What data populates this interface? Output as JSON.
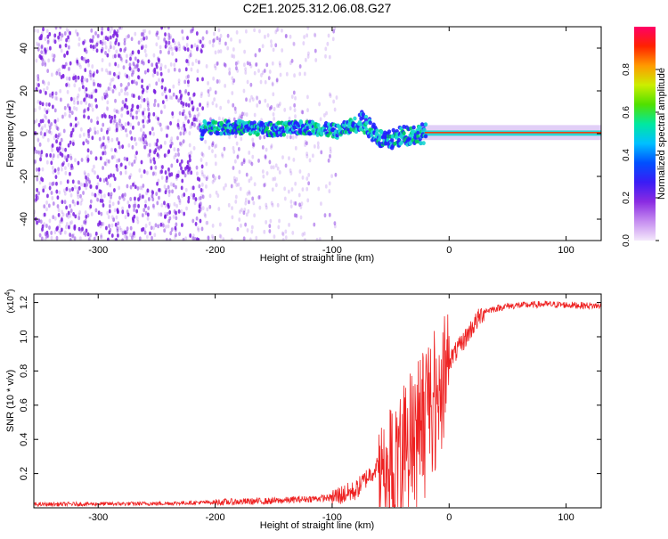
{
  "title": "C2E1.2025.312.06.08.G27",
  "colors": {
    "series": "#ee2222",
    "spec_dot": "#7a1fe0",
    "spec_ridge_low": "#2020ff",
    "spec_ridge_mid": "#19d7d0",
    "spec_ridge_hi": "#00d060",
    "colorbar": [
      "#f4e8fb",
      "#c58cf0",
      "#8a2be2",
      "#3a1cf5",
      "#0050ff",
      "#00c0ff",
      "#00e8a0",
      "#50e000",
      "#ccee00",
      "#ff9900",
      "#ff2200",
      "#ff0066"
    ]
  },
  "chart_data": [
    {
      "type": "heatmap",
      "title": "C2E1.2025.312.06.08.G27",
      "xlabel": "Height of straight line (km)",
      "ylabel": "Frequency (Hz)",
      "xlim": [
        -355,
        130
      ],
      "ylim": [
        -50,
        50
      ],
      "xticks": [
        -300,
        -200,
        -100,
        0,
        100
      ],
      "yticks": [
        -40,
        -20,
        0,
        20,
        40
      ],
      "ridge": {
        "description_x": [
          -210,
          -180,
          -150,
          -120,
          -95,
          -75,
          -55,
          -40,
          -25,
          0,
          50,
          130
        ],
        "frequency_hz": [
          3,
          3,
          2,
          3,
          1,
          6,
          -4,
          -1,
          0,
          0.5,
          0.5,
          0.5
        ]
      },
      "colorbar": {
        "label": "Normalized spectral amplitude",
        "range": [
          0,
          1
        ],
        "ticks": [
          "0.0",
          "0.2",
          "0.4",
          "0.6",
          "0.8"
        ]
      }
    },
    {
      "type": "line",
      "xlabel": "Height of straight line (km)",
      "ylabel": "SNR (10 * v/v)",
      "scale_label_base": "(x10",
      "scale_label_exp": "4",
      "scale_label_end": ")",
      "xlim": [
        -355,
        130
      ],
      "ylim": [
        0,
        1.25
      ],
      "xticks": [
        -300,
        -200,
        -100,
        0,
        100
      ],
      "yticks": [
        "0.2",
        "0.4",
        "0.6",
        "0.8",
        "1.0",
        "1.2"
      ],
      "series": [
        {
          "name": "SNR",
          "x": [
            -355,
            -250,
            -150,
            -100,
            -80,
            -70,
            -60,
            -50,
            -40,
            -30,
            -20,
            -10,
            0,
            10,
            20,
            30,
            50,
            80,
            130
          ],
          "y": [
            0.02,
            0.025,
            0.04,
            0.06,
            0.1,
            0.18,
            0.25,
            0.28,
            0.4,
            0.55,
            0.68,
            0.76,
            0.86,
            0.95,
            1.06,
            1.15,
            1.18,
            1.19,
            1.18
          ]
        }
      ]
    }
  ]
}
